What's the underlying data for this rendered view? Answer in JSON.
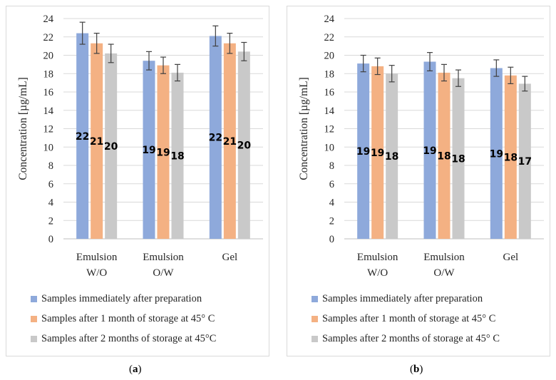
{
  "chart_data": [
    {
      "type": "bar",
      "panel_label": "a",
      "categories": [
        [
          "Emulsion",
          "W/O"
        ],
        [
          "Emulsion",
          "O/W"
        ],
        [
          "Gel"
        ]
      ],
      "ylabel": "Concentration [µg/mL]",
      "ylim": [
        0,
        24
      ],
      "yticks": [
        0,
        2,
        4,
        6,
        8,
        10,
        12,
        14,
        16,
        18,
        20,
        22,
        24
      ],
      "grid": true,
      "legend_position": "bottom",
      "series": [
        {
          "name": "Samples immediately after preparation",
          "color": "#8EA9DB",
          "values": [
            22.4,
            19.4,
            22.1
          ],
          "errors": [
            1.2,
            1.0,
            1.1
          ],
          "labels": [
            "22",
            "19",
            "22"
          ]
        },
        {
          "name": "Samples after 1 month of storage at 45° C",
          "color": "#F4B183",
          "values": [
            21.3,
            18.9,
            21.3
          ],
          "errors": [
            1.1,
            0.9,
            1.1
          ],
          "labels": [
            "21",
            "19",
            "21"
          ]
        },
        {
          "name": "Samples after 2 months of storage at 45°C",
          "color": "#C9C9C9",
          "values": [
            20.2,
            18.1,
            20.4
          ],
          "errors": [
            1.0,
            0.9,
            1.0
          ],
          "labels": [
            "20",
            "18",
            "20"
          ]
        }
      ]
    },
    {
      "type": "bar",
      "panel_label": "b",
      "categories": [
        [
          "Emulsion",
          "W/O"
        ],
        [
          "Emulsion",
          "O/W"
        ],
        [
          "Gel"
        ]
      ],
      "ylabel": "Concentration [µg/mL]",
      "ylim": [
        0,
        24
      ],
      "yticks": [
        0,
        2,
        4,
        6,
        8,
        10,
        12,
        14,
        16,
        18,
        20,
        22,
        24
      ],
      "grid": true,
      "legend_position": "bottom",
      "series": [
        {
          "name": "Samples immediately after preparation",
          "color": "#8EA9DB",
          "values": [
            19.1,
            19.3,
            18.6
          ],
          "errors": [
            0.9,
            1.0,
            0.9
          ],
          "labels": [
            "19",
            "19",
            "19"
          ]
        },
        {
          "name": "Samples after 1 month of storage at 45° C",
          "color": "#F4B183",
          "values": [
            18.8,
            18.1,
            17.8
          ],
          "errors": [
            0.9,
            0.9,
            0.9
          ],
          "labels": [
            "19",
            "18",
            "18"
          ]
        },
        {
          "name": "Samples after 2 months of storage at 45° C",
          "color": "#C9C9C9",
          "values": [
            18.0,
            17.5,
            16.9
          ],
          "errors": [
            0.9,
            0.9,
            0.8
          ],
          "labels": [
            "18",
            "18",
            "17"
          ]
        }
      ]
    }
  ],
  "captions": {
    "a": {
      "open": "(",
      "label": "a",
      "close": ")"
    },
    "b": {
      "open": "(",
      "label": "b",
      "close": ")"
    }
  }
}
